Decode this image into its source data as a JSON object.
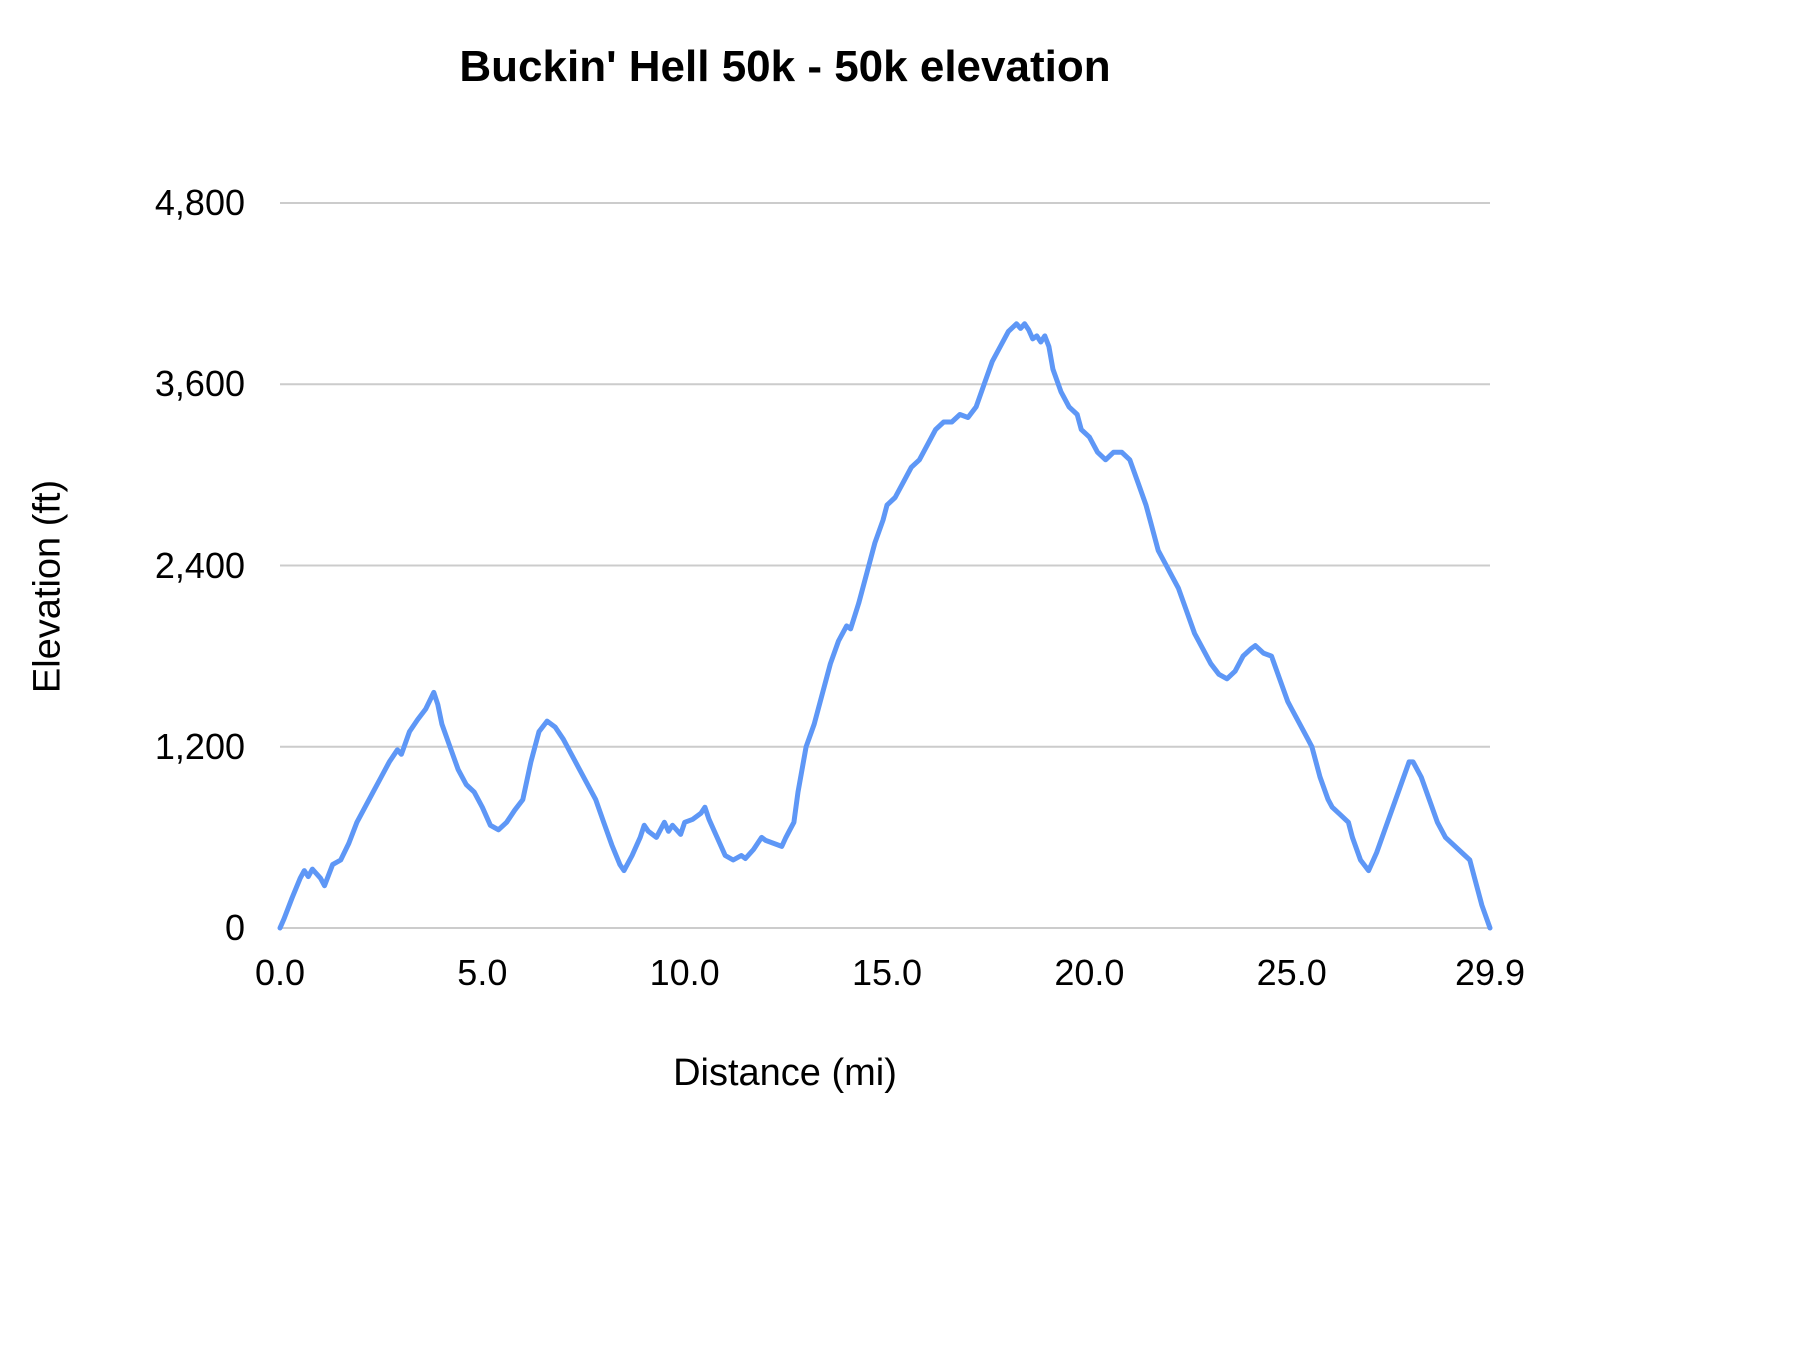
{
  "chart": {
    "title": "Buckin' Hell 50k - 50k elevation",
    "xlabel": "Distance (mi)",
    "ylabel": "Elevation (ft)"
  },
  "colors": {
    "line": "#5e97f6",
    "gridline": "#cccccc",
    "text": "#000000",
    "background": "#ffffff"
  },
  "chart_data": {
    "type": "line",
    "title": "Buckin' Hell 50k - 50k elevation",
    "xlabel": "Distance (mi)",
    "ylabel": "Elevation (ft)",
    "xlim": [
      0,
      29.9
    ],
    "ylim": [
      0,
      4800
    ],
    "grid": "horizontal",
    "legend": "none",
    "line_color": "#5e97f6",
    "line_width": 5,
    "xticks": {
      "values": [
        0,
        5,
        10,
        15,
        20,
        25,
        29.9
      ],
      "labels": [
        "0.0",
        "5.0",
        "10.0",
        "15.0",
        "20.0",
        "25.0",
        "29.9"
      ]
    },
    "yticks": {
      "values": [
        0,
        1200,
        2400,
        3600,
        4800
      ],
      "labels": [
        "0",
        "1,200",
        "2,400",
        "3,600",
        "4,800"
      ]
    },
    "series": [
      {
        "name": "50k elevation",
        "x": [
          0,
          0.1,
          0.3,
          0.5,
          0.6,
          0.7,
          0.8,
          0.9,
          1.0,
          1.1,
          1.3,
          1.5,
          1.7,
          1.9,
          2.1,
          2.3,
          2.5,
          2.7,
          2.9,
          3.0,
          3.2,
          3.4,
          3.6,
          3.8,
          3.9,
          4.0,
          4.2,
          4.4,
          4.6,
          4.8,
          5.0,
          5.2,
          5.4,
          5.6,
          5.8,
          6.0,
          6.2,
          6.4,
          6.6,
          6.8,
          7.0,
          7.2,
          7.4,
          7.6,
          7.8,
          8.0,
          8.2,
          8.4,
          8.5,
          8.7,
          8.9,
          9.0,
          9.1,
          9.3,
          9.4,
          9.5,
          9.6,
          9.7,
          9.9,
          10.0,
          10.2,
          10.4,
          10.5,
          10.6,
          10.8,
          11.0,
          11.2,
          11.4,
          11.5,
          11.7,
          11.9,
          12.0,
          12.2,
          12.4,
          12.5,
          12.6,
          12.7,
          12.8,
          13.0,
          13.2,
          13.4,
          13.6,
          13.8,
          14.0,
          14.1,
          14.3,
          14.5,
          14.7,
          14.9,
          15.0,
          15.2,
          15.4,
          15.6,
          15.8,
          16.0,
          16.2,
          16.4,
          16.6,
          16.8,
          17.0,
          17.2,
          17.4,
          17.6,
          17.8,
          18.0,
          18.2,
          18.3,
          18.4,
          18.5,
          18.6,
          18.7,
          18.8,
          18.9,
          19.0,
          19.1,
          19.3,
          19.5,
          19.7,
          19.8,
          20.0,
          20.2,
          20.4,
          20.6,
          20.8,
          21.0,
          21.2,
          21.4,
          21.5,
          21.7,
          21.9,
          22.0,
          22.2,
          22.4,
          22.6,
          22.8,
          23.0,
          23.2,
          23.4,
          23.6,
          23.8,
          24.0,
          24.1,
          24.3,
          24.5,
          24.7,
          24.9,
          25.0,
          25.2,
          25.4,
          25.5,
          25.7,
          25.9,
          26.0,
          26.2,
          26.4,
          26.5,
          26.7,
          26.9,
          27.1,
          27.3,
          27.5,
          27.7,
          27.9,
          28.0,
          28.2,
          28.4,
          28.6,
          28.8,
          29.0,
          29.2,
          29.4,
          29.5,
          29.7,
          29.9
        ],
        "y": [
          0,
          60,
          200,
          330,
          380,
          340,
          390,
          360,
          330,
          280,
          420,
          450,
          560,
          700,
          800,
          900,
          1000,
          1100,
          1180,
          1150,
          1300,
          1380,
          1450,
          1560,
          1480,
          1350,
          1200,
          1050,
          950,
          900,
          800,
          680,
          650,
          700,
          780,
          850,
          1100,
          1300,
          1370,
          1330,
          1250,
          1150,
          1050,
          950,
          850,
          700,
          550,
          420,
          380,
          480,
          600,
          680,
          640,
          600,
          650,
          700,
          640,
          680,
          620,
          700,
          720,
          760,
          800,
          720,
          600,
          480,
          450,
          480,
          460,
          520,
          600,
          580,
          560,
          540,
          600,
          650,
          700,
          900,
          1200,
          1350,
          1550,
          1750,
          1900,
          2000,
          1980,
          2150,
          2350,
          2550,
          2700,
          2800,
          2850,
          2950,
          3050,
          3100,
          3200,
          3300,
          3350,
          3350,
          3400,
          3380,
          3450,
          3600,
          3750,
          3850,
          3950,
          4000,
          3970,
          4000,
          3960,
          3900,
          3920,
          3880,
          3920,
          3850,
          3700,
          3550,
          3450,
          3400,
          3300,
          3250,
          3150,
          3100,
          3150,
          3150,
          3100,
          2950,
          2800,
          2700,
          2500,
          2400,
          2350,
          2250,
          2100,
          1950,
          1850,
          1750,
          1680,
          1650,
          1700,
          1800,
          1850,
          1870,
          1820,
          1800,
          1650,
          1500,
          1450,
          1350,
          1250,
          1200,
          1000,
          850,
          800,
          750,
          700,
          600,
          450,
          380,
          500,
          650,
          800,
          950,
          1100,
          1100,
          1000,
          850,
          700,
          600,
          550,
          500,
          450,
          350,
          150,
          0
        ]
      }
    ]
  }
}
